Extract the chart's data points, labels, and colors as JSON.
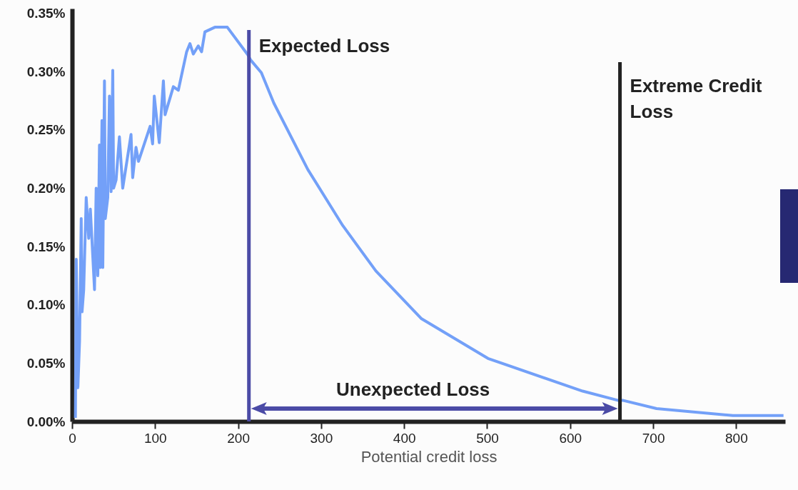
{
  "chart_data": {
    "type": "line",
    "xlabel": "Potential credit loss",
    "x": [
      4,
      5,
      7,
      9,
      11,
      12,
      14,
      17,
      20,
      22,
      27,
      29,
      31,
      33,
      34,
      36,
      37,
      39,
      40,
      43,
      45,
      47,
      49,
      50,
      53,
      57,
      61,
      71,
      73,
      77,
      80,
      94,
      97,
      99,
      105,
      110,
      112,
      122,
      128,
      138,
      142,
      146,
      152,
      156,
      160,
      172,
      187,
      212,
      215,
      228,
      243,
      284,
      326,
      366,
      421,
      501,
      615,
      658,
      664,
      704,
      796,
      857
    ],
    "values": [
      0.003,
      0.139,
      0.029,
      0.069,
      0.174,
      0.094,
      0.113,
      0.192,
      0.157,
      0.182,
      0.113,
      0.2,
      0.125,
      0.237,
      0.132,
      0.258,
      0.132,
      0.292,
      0.174,
      0.192,
      0.279,
      0.197,
      0.301,
      0.2,
      0.207,
      0.244,
      0.2,
      0.246,
      0.209,
      0.235,
      0.223,
      0.253,
      0.238,
      0.279,
      0.239,
      0.292,
      0.263,
      0.287,
      0.284,
      0.317,
      0.324,
      0.315,
      0.322,
      0.317,
      0.334,
      0.338,
      0.338,
      0.314,
      0.31,
      0.299,
      0.273,
      0.216,
      0.168,
      0.129,
      0.088,
      0.054,
      0.026,
      0.018,
      0.018,
      0.011,
      0.005,
      0.005
    ],
    "color": "#73a0f8",
    "xlim": [
      0,
      859
    ],
    "xticks": [
      0,
      100,
      200,
      300,
      400,
      500,
      600,
      700,
      800
    ],
    "ylim": [
      0,
      0.354
    ],
    "yticks": [
      {
        "value": 0,
        "label": "0.00%"
      },
      {
        "value": 0.05,
        "label": "0.05%"
      },
      {
        "value": 0.1,
        "label": "0.10%"
      },
      {
        "value": 0.15,
        "label": "0.15%"
      },
      {
        "value": 0.2,
        "label": "0.20%"
      },
      {
        "value": 0.25,
        "label": "0.25%"
      },
      {
        "value": 0.3,
        "label": "0.30%"
      },
      {
        "value": 0.35,
        "label": "0.35%"
      }
    ],
    "grid": false,
    "marker": "none",
    "line_style": "solid",
    "ref_lines": [
      {
        "axis": "x",
        "value": 213,
        "label": "Expected Loss",
        "color": "#4b4ba6"
      },
      {
        "axis": "x",
        "value": 660,
        "label": "Extreme Credit\nLoss",
        "color": "#222222"
      }
    ],
    "annotations": [
      "Unexpected Loss"
    ]
  }
}
